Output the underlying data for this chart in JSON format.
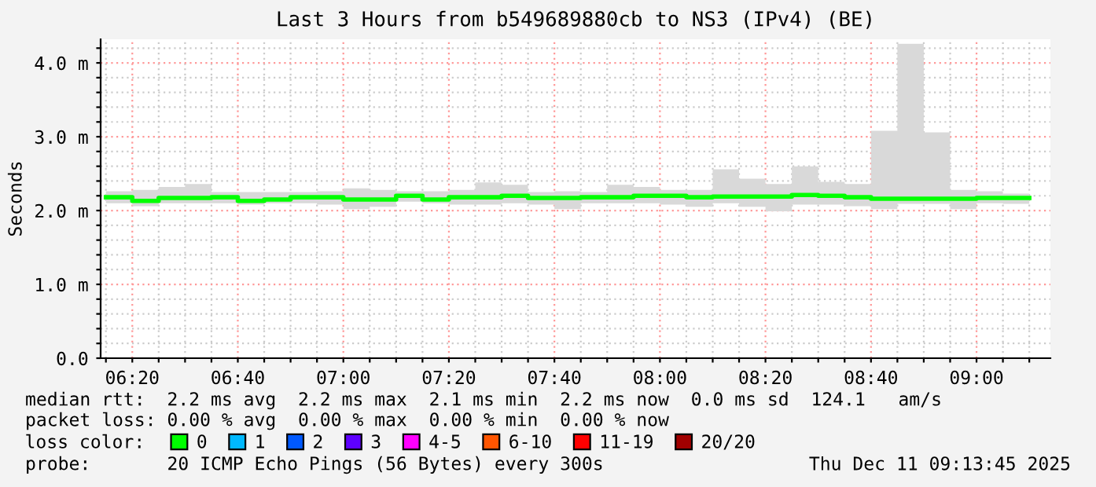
{
  "chart_data": {
    "type": "step",
    "title": "Last 3 Hours from b549689880cb to NS3 (IPv4) (BE)",
    "ylabel": "Seconds",
    "x": [
      "2025-12-11T06:15",
      "2025-12-11T06:20",
      "2025-12-11T06:25",
      "2025-12-11T06:30",
      "2025-12-11T06:35",
      "2025-12-11T06:40",
      "2025-12-11T06:45",
      "2025-12-11T06:50",
      "2025-12-11T06:55",
      "2025-12-11T07:00",
      "2025-12-11T07:05",
      "2025-12-11T07:10",
      "2025-12-11T07:15",
      "2025-12-11T07:20",
      "2025-12-11T07:25",
      "2025-12-11T07:30",
      "2025-12-11T07:35",
      "2025-12-11T07:40",
      "2025-12-11T07:45",
      "2025-12-11T07:50",
      "2025-12-11T07:55",
      "2025-12-11T08:00",
      "2025-12-11T08:05",
      "2025-12-11T08:10",
      "2025-12-11T08:15",
      "2025-12-11T08:20",
      "2025-12-11T08:25",
      "2025-12-11T08:30",
      "2025-12-11T08:35",
      "2025-12-11T08:40",
      "2025-12-11T08:45",
      "2025-12-11T08:50",
      "2025-12-11T08:55",
      "2025-12-11T09:00",
      "2025-12-11T09:05",
      "2025-12-11T09:10"
    ],
    "series": [
      {
        "name": "0",
        "color": "#00ff00",
        "values": [
          2.18,
          2.13,
          2.17,
          2.17,
          2.18,
          2.13,
          2.15,
          2.18,
          2.18,
          2.15,
          2.15,
          2.2,
          2.15,
          2.18,
          2.18,
          2.2,
          2.17,
          2.17,
          2.18,
          2.18,
          2.2,
          2.2,
          2.18,
          2.19,
          2.19,
          2.19,
          2.21,
          2.2,
          2.18,
          2.16,
          2.16,
          2.16,
          2.16,
          2.17,
          2.17,
          2.17
        ],
        "lower": [
          2.1,
          2.06,
          2.1,
          2.1,
          2.1,
          2.08,
          2.1,
          2.1,
          2.08,
          2.02,
          2.05,
          2.12,
          2.1,
          2.08,
          2.08,
          2.1,
          2.08,
          2.02,
          2.1,
          2.1,
          2.1,
          2.08,
          2.05,
          2.1,
          2.05,
          1.99,
          2.08,
          2.08,
          2.06,
          2.02,
          2.09,
          2.09,
          2.02,
          2.1,
          2.09,
          2.09
        ],
        "upper": [
          2.26,
          2.28,
          2.32,
          2.36,
          2.25,
          2.25,
          2.25,
          2.25,
          2.26,
          2.3,
          2.28,
          2.26,
          2.26,
          2.28,
          2.38,
          2.35,
          2.25,
          2.26,
          2.25,
          2.35,
          2.32,
          2.28,
          2.28,
          2.56,
          2.43,
          2.36,
          2.6,
          2.39,
          2.36,
          3.08,
          4.26,
          3.06,
          2.28,
          2.26,
          2.23,
          2.23
        ]
      },
      {
        "name": "1",
        "color": "#00b8ff",
        "values": [
          null,
          null,
          null,
          null,
          null,
          null,
          null,
          null,
          null,
          null,
          null,
          null,
          null,
          null,
          null,
          null,
          null,
          null,
          null,
          null,
          null,
          null,
          null,
          null,
          null,
          null,
          null,
          null,
          null,
          null,
          null,
          null,
          null,
          null,
          null,
          null
        ]
      },
      {
        "name": "2",
        "color": "#0059ff",
        "values": [
          null,
          null,
          null,
          null,
          null,
          null,
          null,
          null,
          null,
          null,
          null,
          null,
          null,
          null,
          null,
          null,
          null,
          null,
          null,
          null,
          null,
          null,
          null,
          null,
          null,
          null,
          null,
          null,
          null,
          null,
          null,
          null,
          null,
          null,
          null,
          null
        ]
      },
      {
        "name": "3",
        "color": "#5e00ff",
        "values": [
          null,
          null,
          null,
          null,
          null,
          null,
          null,
          null,
          null,
          null,
          null,
          null,
          null,
          null,
          null,
          null,
          null,
          null,
          null,
          null,
          null,
          null,
          null,
          null,
          null,
          null,
          null,
          null,
          null,
          null,
          null,
          null,
          null,
          null,
          null,
          null
        ]
      },
      {
        "name": "4-5",
        "color": "#ff00ff",
        "values": [
          null,
          null,
          null,
          null,
          null,
          null,
          null,
          null,
          null,
          null,
          null,
          null,
          null,
          null,
          null,
          null,
          null,
          null,
          null,
          null,
          null,
          null,
          null,
          null,
          null,
          null,
          null,
          null,
          null,
          null,
          null,
          null,
          null,
          null,
          null,
          null
        ]
      },
      {
        "name": "6-10",
        "color": "#ff5500",
        "values": [
          null,
          null,
          null,
          null,
          null,
          null,
          null,
          null,
          null,
          null,
          null,
          null,
          null,
          null,
          null,
          null,
          null,
          null,
          null,
          null,
          null,
          null,
          null,
          null,
          null,
          null,
          null,
          null,
          null,
          null,
          null,
          null,
          null,
          null,
          null,
          null
        ]
      },
      {
        "name": "11-19",
        "color": "#ff0000",
        "values": [
          null,
          null,
          null,
          null,
          null,
          null,
          null,
          null,
          null,
          null,
          null,
          null,
          null,
          null,
          null,
          null,
          null,
          null,
          null,
          null,
          null,
          null,
          null,
          null,
          null,
          null,
          null,
          null,
          null,
          null,
          null,
          null,
          null,
          null,
          null,
          null
        ]
      },
      {
        "name": "20/20",
        "color": "#a10000",
        "values": [
          null,
          null,
          null,
          null,
          null,
          null,
          null,
          null,
          null,
          null,
          null,
          null,
          null,
          null,
          null,
          null,
          null,
          null,
          null,
          null,
          null,
          null,
          null,
          null,
          null,
          null,
          null,
          null,
          null,
          null,
          null,
          null,
          null,
          null,
          null,
          null
        ]
      }
    ],
    "legend": "bottom",
    "legend_title": "loss color:",
    "grid": true,
    "xlim": [
      "2025-12-11T06:14",
      "2025-12-11T09:14"
    ],
    "xticks": [
      {
        "value": "2025-12-11T06:15",
        "label": null
      },
      {
        "value": "2025-12-11T06:20",
        "label": "06:20"
      },
      {
        "value": "2025-12-11T06:25",
        "label": null
      },
      {
        "value": "2025-12-11T06:30",
        "label": null
      },
      {
        "value": "2025-12-11T06:35",
        "label": null
      },
      {
        "value": "2025-12-11T06:40",
        "label": "06:40"
      },
      {
        "value": "2025-12-11T06:45",
        "label": null
      },
      {
        "value": "2025-12-11T06:50",
        "label": null
      },
      {
        "value": "2025-12-11T06:55",
        "label": null
      },
      {
        "value": "2025-12-11T07:00",
        "label": "07:00"
      },
      {
        "value": "2025-12-11T07:05",
        "label": null
      },
      {
        "value": "2025-12-11T07:10",
        "label": null
      },
      {
        "value": "2025-12-11T07:15",
        "label": null
      },
      {
        "value": "2025-12-11T07:20",
        "label": "07:20"
      },
      {
        "value": "2025-12-11T07:25",
        "label": null
      },
      {
        "value": "2025-12-11T07:30",
        "label": null
      },
      {
        "value": "2025-12-11T07:35",
        "label": null
      },
      {
        "value": "2025-12-11T07:40",
        "label": "07:40"
      },
      {
        "value": "2025-12-11T07:45",
        "label": null
      },
      {
        "value": "2025-12-11T07:50",
        "label": null
      },
      {
        "value": "2025-12-11T07:55",
        "label": null
      },
      {
        "value": "2025-12-11T08:00",
        "label": "08:00"
      },
      {
        "value": "2025-12-11T08:05",
        "label": null
      },
      {
        "value": "2025-12-11T08:10",
        "label": null
      },
      {
        "value": "2025-12-11T08:15",
        "label": null
      },
      {
        "value": "2025-12-11T08:20",
        "label": "08:20"
      },
      {
        "value": "2025-12-11T08:25",
        "label": null
      },
      {
        "value": "2025-12-11T08:30",
        "label": null
      },
      {
        "value": "2025-12-11T08:35",
        "label": null
      },
      {
        "value": "2025-12-11T08:40",
        "label": "08:40"
      },
      {
        "value": "2025-12-11T08:45",
        "label": null
      },
      {
        "value": "2025-12-11T08:50",
        "label": null
      },
      {
        "value": "2025-12-11T08:55",
        "label": null
      },
      {
        "value": "2025-12-11T09:00",
        "label": "09:00"
      },
      {
        "value": "2025-12-11T09:05",
        "label": null
      },
      {
        "value": "2025-12-11T09:10",
        "label": null
      }
    ],
    "ylim": [
      0,
      4.32
    ],
    "yticks": [
      {
        "value": 0,
        "label": "0.0"
      },
      {
        "value": 0.2,
        "label": null
      },
      {
        "value": 0.4,
        "label": null
      },
      {
        "value": 0.6,
        "label": null
      },
      {
        "value": 0.8,
        "label": null
      },
      {
        "value": 1,
        "label": "1.0 m"
      },
      {
        "value": 1.2,
        "label": null
      },
      {
        "value": 1.4,
        "label": null
      },
      {
        "value": 1.6,
        "label": null
      },
      {
        "value": 1.8,
        "label": null
      },
      {
        "value": 2,
        "label": "2.0 m"
      },
      {
        "value": 2.2,
        "label": null
      },
      {
        "value": 2.4,
        "label": null
      },
      {
        "value": 2.6,
        "label": null
      },
      {
        "value": 2.8,
        "label": null
      },
      {
        "value": 3,
        "label": "3.0 m"
      },
      {
        "value": 3.2,
        "label": null
      },
      {
        "value": 3.4,
        "label": null
      },
      {
        "value": 3.6,
        "label": null
      },
      {
        "value": 3.8,
        "label": null
      },
      {
        "value": 4,
        "label": "4.0 m"
      },
      {
        "value": 4.2,
        "label": null
      }
    ],
    "annotations": [
      "median rtt:  2.2 ms avg  2.2 ms max  2.1 ms min  2.2 ms now  0.0 ms sd  124.1   am/s",
      "packet loss: 0.00 % avg  0.00 % max  0.00 % min  0.00 % now",
      "probe:       20 ICMP Echo Pings (56 Bytes) every 300s",
      "Thu Dec 11 09:13:45 2025"
    ]
  }
}
